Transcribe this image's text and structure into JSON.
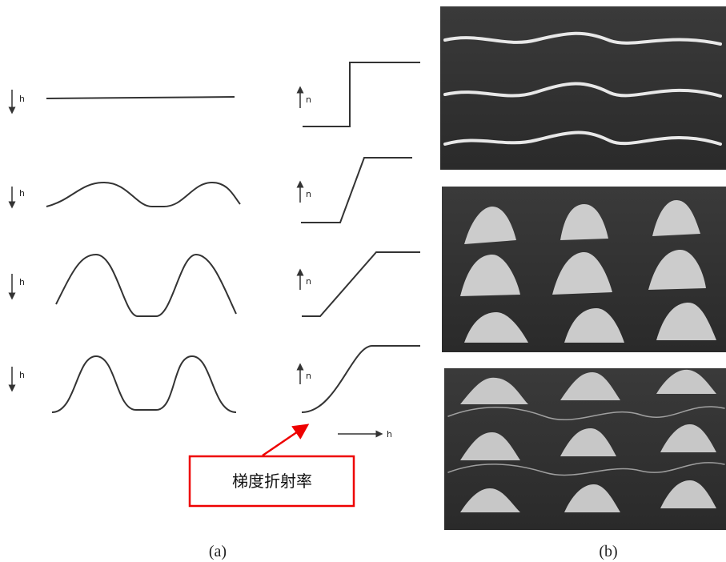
{
  "left_column": {
    "axis_labels": [
      "h",
      "h",
      "h",
      "h"
    ]
  },
  "middle_column": {
    "axis_labels": [
      "n",
      "n",
      "n",
      "n"
    ],
    "x_axis_label": "h"
  },
  "callout": "梯度折射率",
  "captions": [
    "(a)",
    "(b)"
  ]
}
